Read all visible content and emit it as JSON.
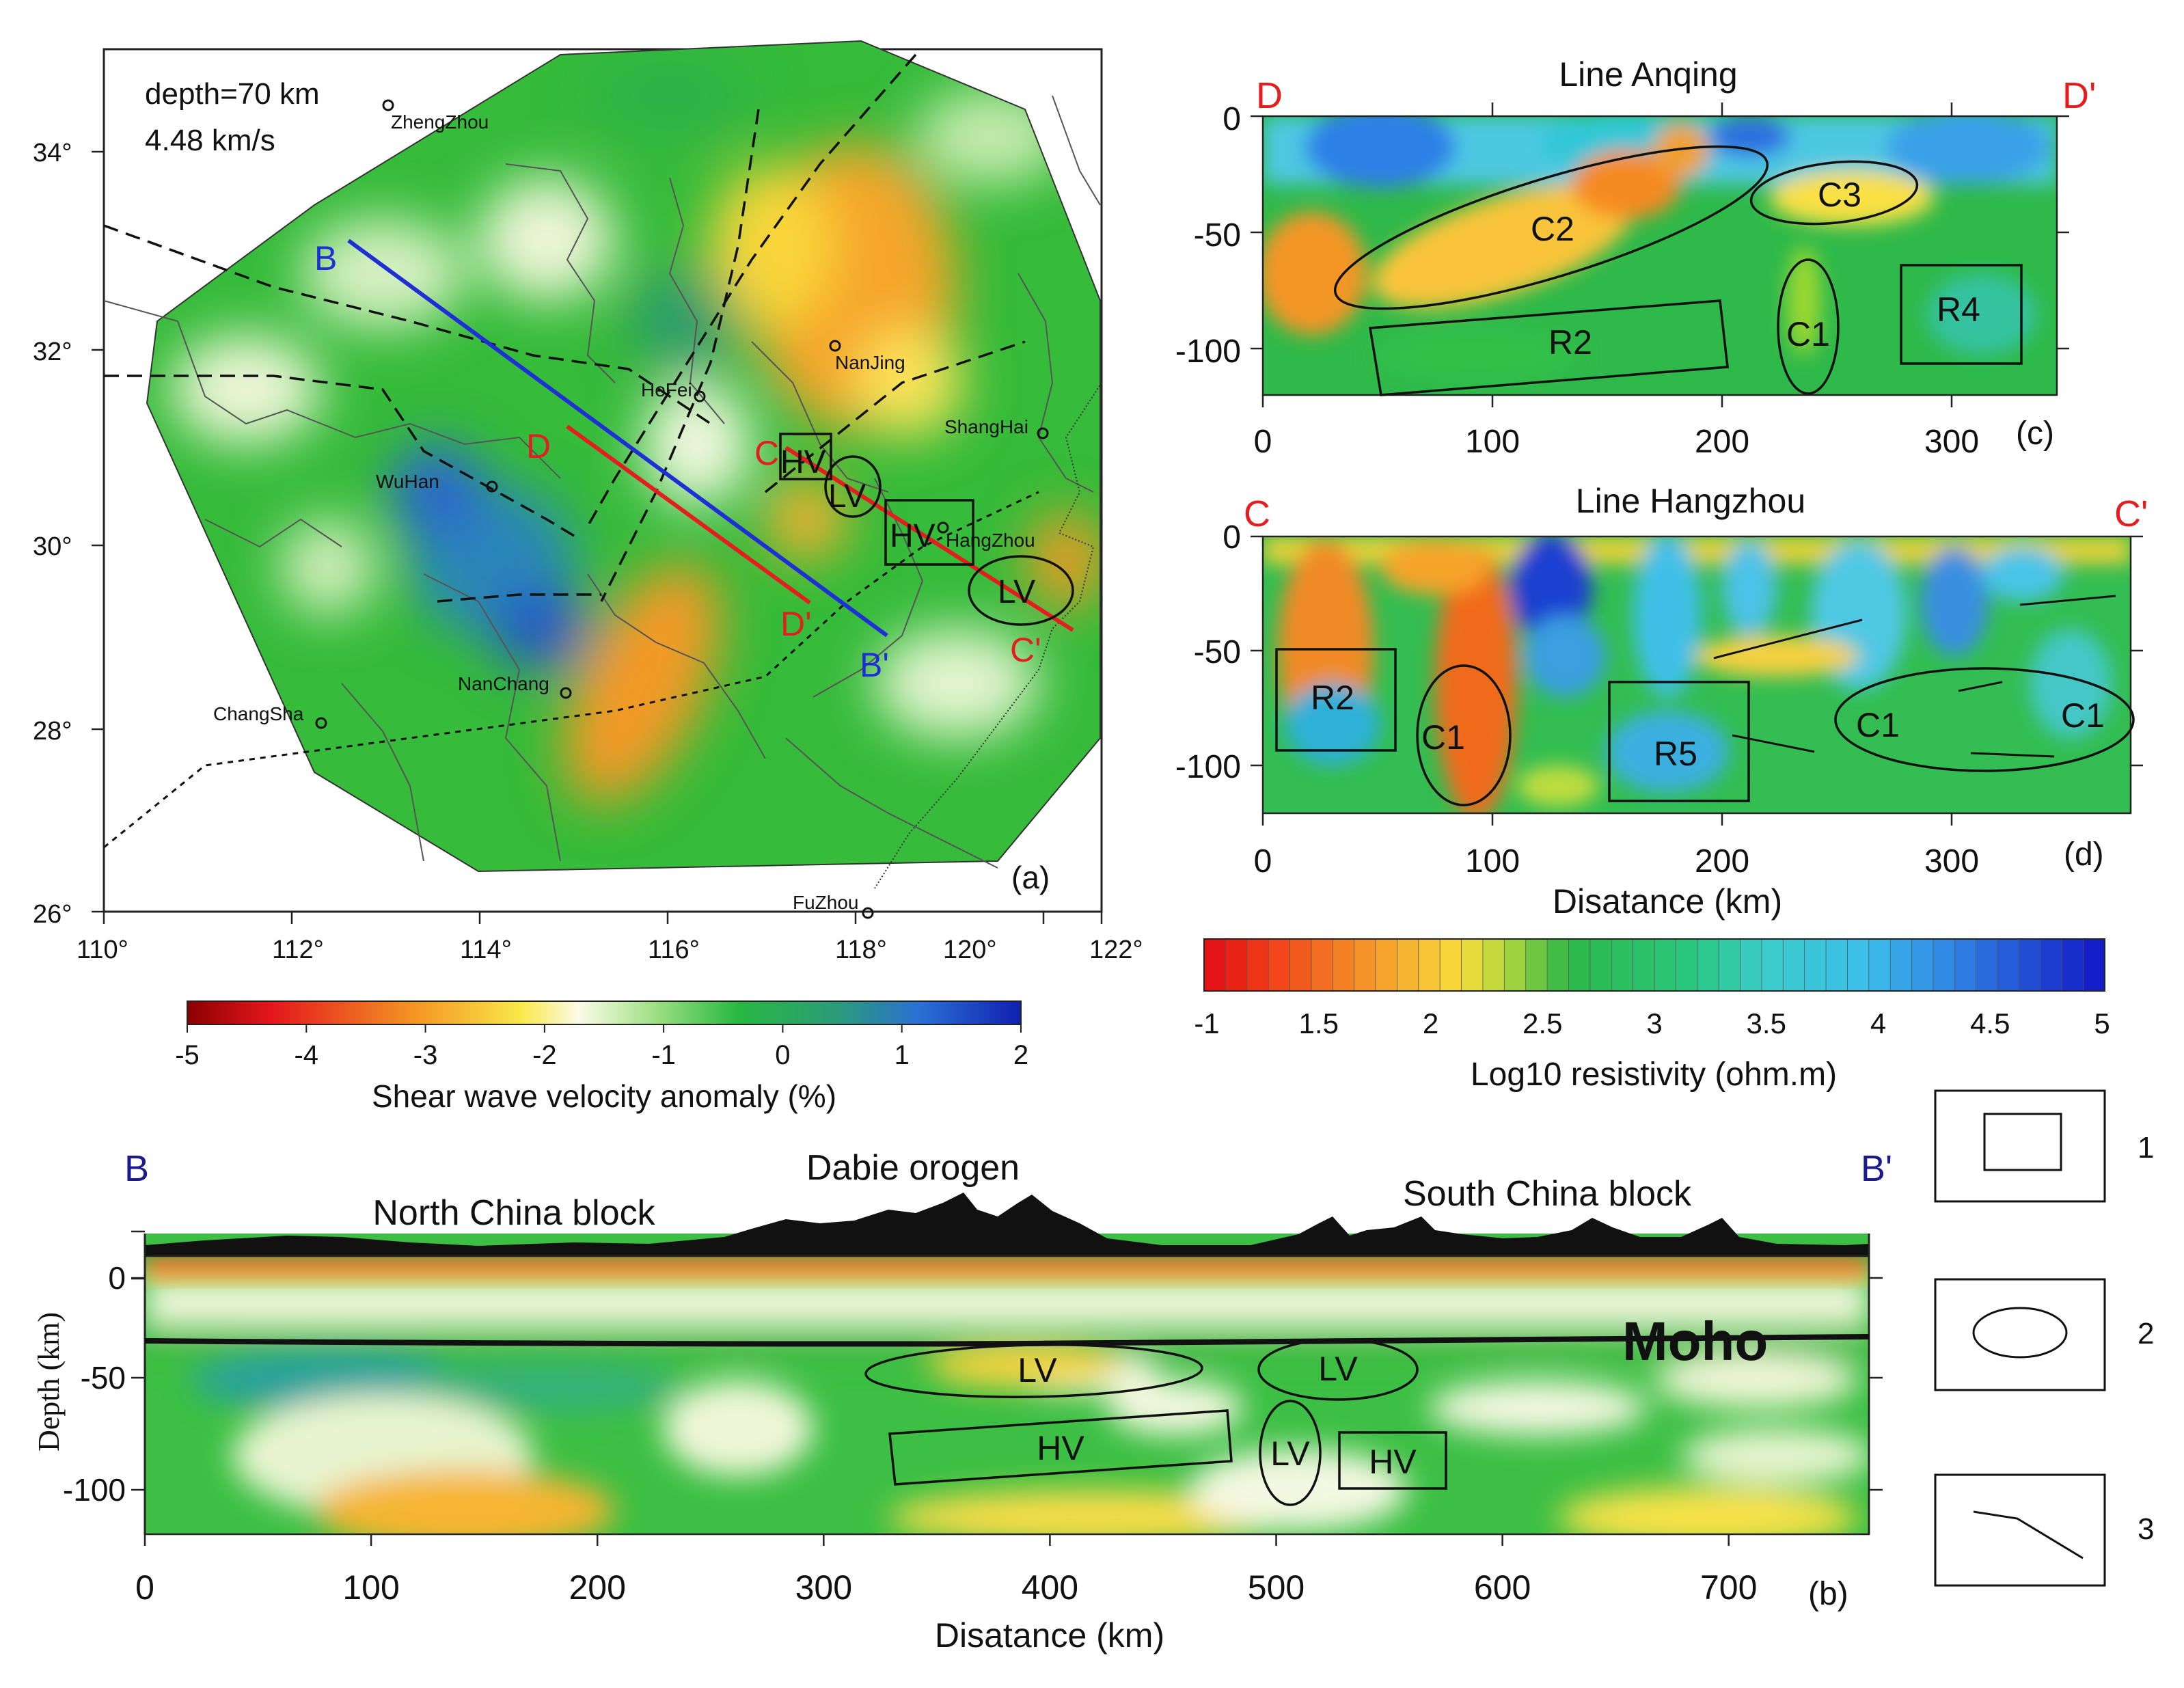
{
  "colors": {
    "blue_line": "#1f2fd6",
    "red_line": "#e41e1e",
    "label_red": "#e41e1e",
    "label_blue": "#1f2fd6",
    "label_navy": "#1a1a8c"
  },
  "panel_a": {
    "depth_label": "depth=70 km",
    "velocity_label": "4.48 km/s",
    "panel_tag": "(a)",
    "lat_ticks": [
      "26°",
      "28°",
      "30°",
      "32°",
      "34°"
    ],
    "lon_ticks": [
      "110°",
      "112°",
      "114°",
      "116°",
      "118°",
      "120°",
      "122°"
    ],
    "cities": [
      "ZhengZhou",
      "HeFei",
      "NanJing",
      "ShangHai",
      "WuHan",
      "HangZhou",
      "ChangSha",
      "NanChang",
      "FuZhou"
    ],
    "profile_labels": {
      "b": "B",
      "b_prime": "B'",
      "d": "D",
      "d_prime": "D'",
      "c": "C",
      "c_prime": "C'"
    },
    "anomaly_labels": [
      "HV",
      "LV",
      "HV",
      "LV"
    ],
    "colorbar": {
      "title": "Shear wave velocity anomaly (%)",
      "ticks": [
        "-5",
        "-4",
        "-3",
        "-2",
        "-1",
        "0",
        "1",
        "2"
      ],
      "range": [
        -5,
        2
      ]
    }
  },
  "panel_c": {
    "title": "Line Anqing",
    "end_left": "D",
    "end_right": "D'",
    "panel_tag": "(c)",
    "y_ticks": [
      "0",
      "-50",
      "-100"
    ],
    "x_ticks": [
      "0",
      "100",
      "200",
      "300"
    ],
    "features": [
      "C2",
      "C3",
      "R2",
      "C1",
      "R4"
    ]
  },
  "panel_d": {
    "title": "Line Hangzhou",
    "end_left": "C",
    "end_right": "C'",
    "panel_tag": "(d)",
    "y_ticks": [
      "0",
      "-50",
      "-100"
    ],
    "x_ticks": [
      "0",
      "100",
      "200",
      "300"
    ],
    "x_label": "Disatance (km)",
    "features": [
      "R2",
      "C1",
      "R5",
      "C1",
      "C1"
    ]
  },
  "resistivity_colorbar": {
    "title": "Log10 resistivity (ohm.m)",
    "ticks": [
      "-1",
      "1.5",
      "2",
      "2.5",
      "3",
      "3.5",
      "4",
      "4.5",
      "5"
    ]
  },
  "panel_b": {
    "end_left": "B",
    "end_right": "B'",
    "region_labels": [
      "North China block",
      "Dabie orogen",
      "South China block"
    ],
    "moho_label": "Moho",
    "y_label": "Depth (km)",
    "y_ticks": [
      "0",
      "-50",
      "-100"
    ],
    "x_ticks": [
      "0",
      "100",
      "200",
      "300",
      "400",
      "500",
      "600",
      "700"
    ],
    "x_label": "Disatance (km)",
    "panel_tag": "(b)",
    "features": [
      "LV",
      "LV",
      "HV",
      "LV",
      "HV"
    ]
  },
  "legend": {
    "items": [
      "1",
      "2",
      "3"
    ]
  }
}
